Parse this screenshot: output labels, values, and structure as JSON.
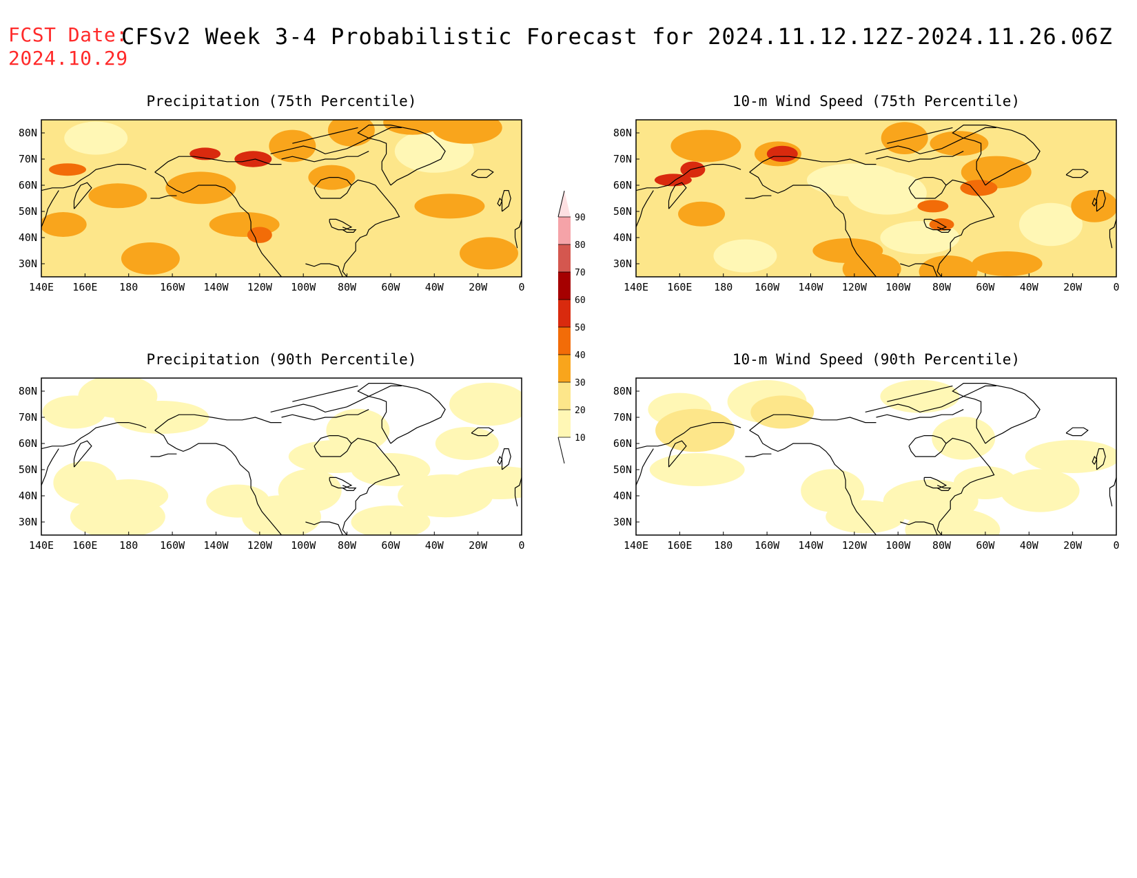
{
  "header": {
    "fcst_label": "FCST Date:",
    "fcst_date": "2024.10.29",
    "title": "CFSv2 Week 3-4 Probabilistic Forecast for 2024.11.12.12Z-2024.11.26.06Z"
  },
  "colors": {
    "levels": [
      "#fff7b5",
      "#fde68a",
      "#f9a51c",
      "#f26c08",
      "#d92a0e",
      "#a50000",
      "#d4574f",
      "#f5a3a8",
      "#fde0e2"
    ],
    "coast": "#000000"
  },
  "chart_data": [
    {
      "type": "heatmap",
      "title": "Precipitation (75th Percentile)",
      "x_tick_labels": [
        "140E",
        "160E",
        "180",
        "160W",
        "140W",
        "120W",
        "100W",
        "80W",
        "60W",
        "40W",
        "20W",
        "0"
      ],
      "y_tick_labels": [
        "30N",
        "40N",
        "50N",
        "60N",
        "70N",
        "80N"
      ],
      "xlim": [
        140,
        360
      ],
      "ylim": [
        25,
        85
      ],
      "base_level": 20,
      "patches": [
        {
          "lon": 215,
          "lat": 72,
          "level": 50
        },
        {
          "lon": 237,
          "lat": 70,
          "level": 50
        },
        {
          "lon": 152,
          "lat": 66,
          "level": 40
        },
        {
          "lon": 240,
          "lat": 41,
          "level": 40
        },
        {
          "lon": 233,
          "lat": 45,
          "level": 30
        },
        {
          "lon": 255,
          "lat": 75,
          "level": 30
        },
        {
          "lon": 175,
          "lat": 56,
          "level": 30
        },
        {
          "lon": 213,
          "lat": 59,
          "level": 30
        },
        {
          "lon": 273,
          "lat": 63,
          "level": 30
        },
        {
          "lon": 345,
          "lat": 34,
          "level": 30
        },
        {
          "lon": 327,
          "lat": 52,
          "level": 30
        },
        {
          "lon": 282,
          "lat": 81,
          "level": 30
        },
        {
          "lon": 310,
          "lat": 84,
          "level": 30
        },
        {
          "lon": 335,
          "lat": 82,
          "level": 30
        },
        {
          "lon": 150,
          "lat": 45,
          "level": 30
        },
        {
          "lon": 190,
          "lat": 32,
          "level": 30
        },
        {
          "lon": 165,
          "lat": 78,
          "level": 10
        },
        {
          "lon": 320,
          "lat": 73,
          "level": 10
        }
      ]
    },
    {
      "type": "heatmap",
      "title": "10-m Wind Speed (75th Percentile)",
      "x_tick_labels": [
        "140E",
        "160E",
        "180",
        "160W",
        "140W",
        "120W",
        "100W",
        "80W",
        "60W",
        "40W",
        "20W",
        "0"
      ],
      "y_tick_labels": [
        "30N",
        "40N",
        "50N",
        "60N",
        "70N",
        "80N"
      ],
      "xlim": [
        140,
        360
      ],
      "ylim": [
        25,
        85
      ],
      "base_level": 20,
      "patches": [
        {
          "lon": 207,
          "lat": 72,
          "level": 50
        },
        {
          "lon": 157,
          "lat": 62,
          "level": 50
        },
        {
          "lon": 166,
          "lat": 66,
          "level": 50
        },
        {
          "lon": 276,
          "lat": 52,
          "level": 40
        },
        {
          "lon": 297,
          "lat": 59,
          "level": 40
        },
        {
          "lon": 280,
          "lat": 45,
          "level": 40
        },
        {
          "lon": 172,
          "lat": 75,
          "level": 30
        },
        {
          "lon": 205,
          "lat": 72,
          "level": 30
        },
        {
          "lon": 248,
          "lat": 28,
          "level": 30
        },
        {
          "lon": 237,
          "lat": 35,
          "level": 30
        },
        {
          "lon": 263,
          "lat": 78,
          "level": 30
        },
        {
          "lon": 288,
          "lat": 76,
          "level": 30
        },
        {
          "lon": 305,
          "lat": 65,
          "level": 30
        },
        {
          "lon": 170,
          "lat": 49,
          "level": 30
        },
        {
          "lon": 283,
          "lat": 27,
          "level": 30
        },
        {
          "lon": 310,
          "lat": 30,
          "level": 30
        },
        {
          "lon": 350,
          "lat": 52,
          "level": 30
        },
        {
          "lon": 190,
          "lat": 33,
          "level": 10
        },
        {
          "lon": 255,
          "lat": 57,
          "level": 10
        },
        {
          "lon": 240,
          "lat": 62,
          "level": 10
        },
        {
          "lon": 330,
          "lat": 45,
          "level": 10
        },
        {
          "lon": 270,
          "lat": 40,
          "level": 10
        }
      ]
    },
    {
      "type": "heatmap",
      "title": "Precipitation (90th Percentile)",
      "x_tick_labels": [
        "140E",
        "160E",
        "180",
        "160W",
        "140W",
        "120W",
        "100W",
        "80W",
        "60W",
        "40W",
        "20W",
        "0"
      ],
      "y_tick_labels": [
        "30N",
        "40N",
        "50N",
        "60N",
        "70N",
        "80N"
      ],
      "xlim": [
        140,
        360
      ],
      "ylim": [
        25,
        85
      ],
      "base_level": 0,
      "patches": [
        {
          "lon": 155,
          "lat": 72,
          "level": 10
        },
        {
          "lon": 175,
          "lat": 78,
          "level": 10
        },
        {
          "lon": 195,
          "lat": 70,
          "level": 10
        },
        {
          "lon": 160,
          "lat": 45,
          "level": 10
        },
        {
          "lon": 180,
          "lat": 40,
          "level": 10
        },
        {
          "lon": 175,
          "lat": 32,
          "level": 10
        },
        {
          "lon": 230,
          "lat": 38,
          "level": 10
        },
        {
          "lon": 250,
          "lat": 32,
          "level": 10
        },
        {
          "lon": 275,
          "lat": 55,
          "level": 10
        },
        {
          "lon": 285,
          "lat": 65,
          "level": 10
        },
        {
          "lon": 300,
          "lat": 50,
          "level": 10
        },
        {
          "lon": 325,
          "lat": 40,
          "level": 10
        },
        {
          "lon": 335,
          "lat": 60,
          "level": 10
        },
        {
          "lon": 345,
          "lat": 75,
          "level": 10
        },
        {
          "lon": 350,
          "lat": 45,
          "level": 10
        },
        {
          "lon": 263,
          "lat": 42,
          "level": 10
        },
        {
          "lon": 300,
          "lat": 30,
          "level": 10
        }
      ]
    },
    {
      "type": "heatmap",
      "title": "10-m Wind Speed (90th Percentile)",
      "x_tick_labels": [
        "140E",
        "160E",
        "180",
        "160W",
        "140W",
        "120W",
        "100W",
        "80W",
        "60W",
        "40W",
        "20W",
        "0"
      ],
      "y_tick_labels": [
        "30N",
        "40N",
        "50N",
        "60N",
        "70N",
        "80N"
      ],
      "xlim": [
        140,
        360
      ],
      "ylim": [
        25,
        85
      ],
      "base_level": 0,
      "patches": [
        {
          "lon": 160,
          "lat": 73,
          "level": 10
        },
        {
          "lon": 200,
          "lat": 76,
          "level": 10
        },
        {
          "lon": 207,
          "lat": 72,
          "level": 20
        },
        {
          "lon": 167,
          "lat": 65,
          "level": 20
        },
        {
          "lon": 168,
          "lat": 50,
          "level": 10
        },
        {
          "lon": 230,
          "lat": 42,
          "level": 10
        },
        {
          "lon": 245,
          "lat": 32,
          "level": 10
        },
        {
          "lon": 275,
          "lat": 38,
          "level": 10
        },
        {
          "lon": 300,
          "lat": 45,
          "level": 10
        },
        {
          "lon": 325,
          "lat": 42,
          "level": 10
        },
        {
          "lon": 340,
          "lat": 55,
          "level": 10
        },
        {
          "lon": 290,
          "lat": 62,
          "level": 10
        },
        {
          "lon": 270,
          "lat": 78,
          "level": 10
        },
        {
          "lon": 285,
          "lat": 27,
          "level": 10
        }
      ]
    }
  ],
  "colorbar": {
    "tick_labels": [
      "10",
      "20",
      "30",
      "40",
      "50",
      "60",
      "70",
      "80",
      "90"
    ]
  }
}
